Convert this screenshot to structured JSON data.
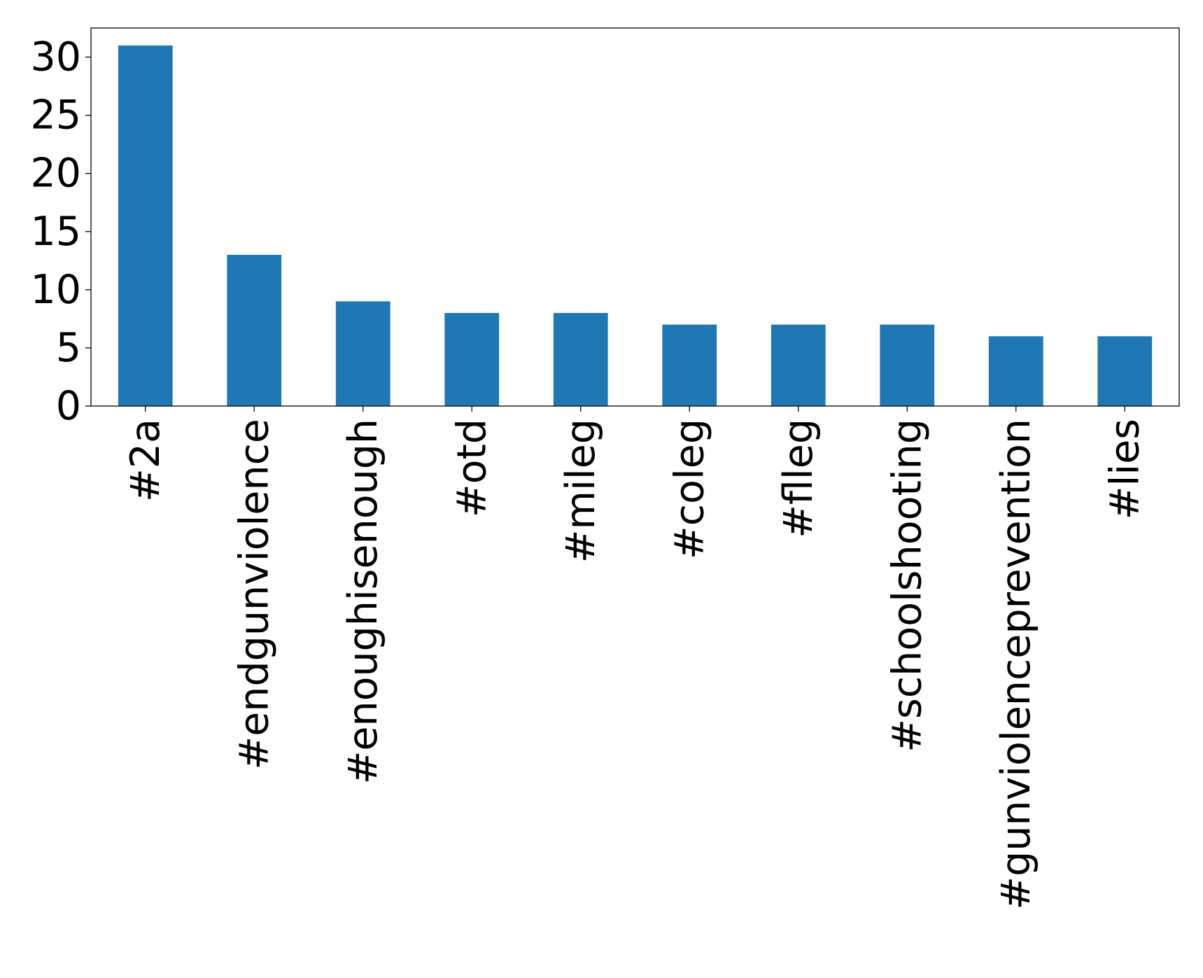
{
  "chart_data": {
    "type": "bar",
    "categories": [
      "#2a",
      "#endgunviolence",
      "#enoughisenough",
      "#otd",
      "#mileg",
      "#coleg",
      "#flleg",
      "#schoolshooting",
      "#gunviolenceprevention",
      "#lies"
    ],
    "values": [
      31,
      13,
      9,
      8,
      8,
      7,
      7,
      7,
      6,
      6
    ],
    "ylim": [
      0,
      32.5
    ],
    "yticks": [
      0,
      5,
      10,
      15,
      20,
      25,
      30
    ],
    "bar_color": "#1f77b4",
    "grid": false,
    "legend": "none",
    "title": "",
    "xlabel": "",
    "ylabel": ""
  }
}
